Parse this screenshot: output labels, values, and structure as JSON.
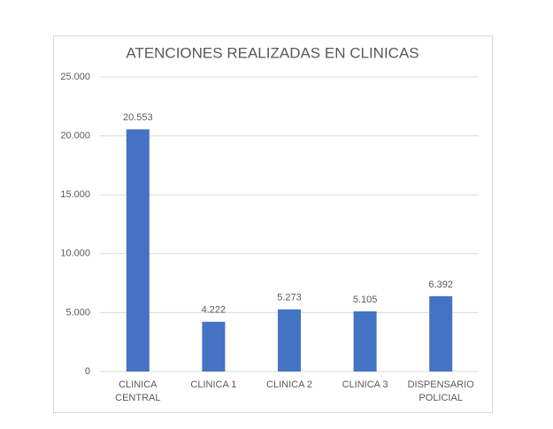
{
  "chart_data": {
    "type": "bar",
    "title": "ATENCIONES REALIZADAS EN CLINICAS",
    "categories": [
      "CLINICA CENTRAL",
      "CLINICA 1",
      "CLINICA 2",
      "CLINICA 3",
      "DISPENSARIO POLICIAL"
    ],
    "values": [
      20553,
      4222,
      5273,
      5105,
      6392
    ],
    "value_labels": [
      "20.553",
      "4.222",
      "5.273",
      "5.105",
      "6.392"
    ],
    "color": "#4472c4",
    "ylim": [
      0,
      25000
    ],
    "yticks": [
      0,
      {
        "value": 5000,
        "label": "5.000"
      },
      {
        "value": 10000,
        "label": "10.000"
      },
      {
        "value": 15000,
        "label": "15.000"
      },
      {
        "value": 20000,
        "label": "20.000"
      },
      {
        "value": 25000,
        "label": "25.000"
      }
    ],
    "grid": true
  }
}
